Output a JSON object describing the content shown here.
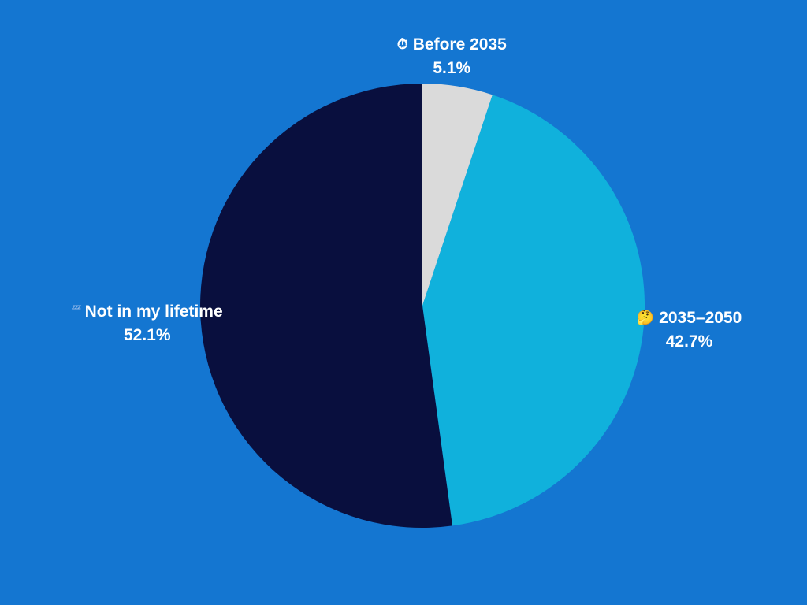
{
  "chart_data": {
    "type": "pie",
    "title": "",
    "slices": [
      {
        "label": "Before 2035",
        "value": 5.1,
        "display": "5.1%",
        "color": "#dadada",
        "icon": "stopwatch-emoji",
        "glyph": "⏱"
      },
      {
        "label": "2035–2050",
        "value": 42.7,
        "display": "42.7%",
        "color": "#10b1dc",
        "icon": "thinking-face-emoji",
        "glyph": "🤔"
      },
      {
        "label": "Not in my lifetime",
        "value": 52.1,
        "display": "52.1%",
        "color": "#090f3e",
        "icon": "zzz-emoji",
        "glyph": "ᶻᶻᶻ"
      }
    ],
    "start_angle": "12 o'clock",
    "direction": "clockwise",
    "legend": "none",
    "labels": "outside"
  },
  "colors": {
    "background": "#1476d1",
    "label_text": "#ffffff"
  }
}
